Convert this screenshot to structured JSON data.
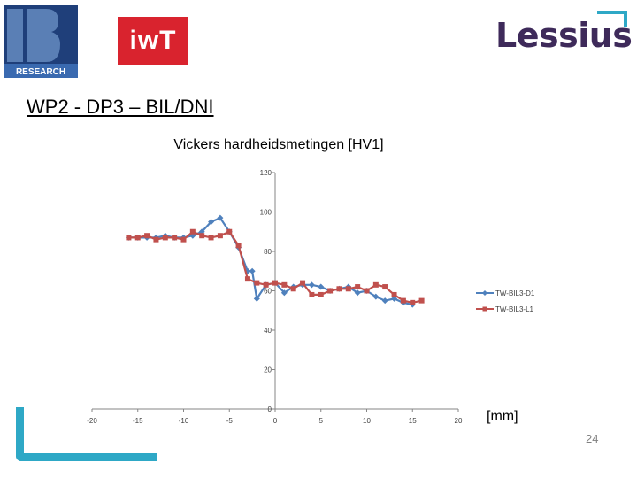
{
  "header": {
    "logo_bis": {
      "icon": "bis-research-logo",
      "text": "RESEARCH"
    },
    "logo_iwt": {
      "icon": "iwt-logo",
      "text": "iwT",
      "color": "#d9232e"
    },
    "logo_lessius": {
      "icon": "lessius-logo",
      "text": "Lessius",
      "color": "#3e2a5a",
      "accent": "#2ea8c6"
    }
  },
  "slide": {
    "title": "WP2 - DP3 – BIL/DNI",
    "unit_label": "[mm]",
    "page_number": "24"
  },
  "chart_data": {
    "type": "line",
    "title": "Vickers hardheidsmetingen [HV1]",
    "xlim": [
      -20,
      20
    ],
    "ylim": [
      0,
      120
    ],
    "x_ticks": [
      -20,
      -15,
      -10,
      -5,
      0,
      5,
      10,
      15,
      20
    ],
    "y_ticks": [
      0,
      20,
      40,
      60,
      80,
      100,
      120
    ],
    "grid": false,
    "legend_position": "right",
    "series": [
      {
        "name": "TW-BIL3-D1",
        "color": "#4f81bd",
        "marker": "diamond",
        "x": [
          -16,
          -15,
          -14,
          -13,
          -12,
          -11,
          -10,
          -9,
          -8,
          -7,
          -6,
          -5,
          -4,
          -3,
          -2.5,
          -2,
          -1,
          0,
          1,
          2,
          3,
          4,
          5,
          6,
          7,
          8,
          9,
          10,
          11,
          12,
          13,
          14,
          15
        ],
        "y": [
          87,
          87,
          87,
          87,
          88,
          87,
          87,
          88,
          90,
          95,
          97,
          90,
          82,
          70,
          70,
          56,
          63,
          64,
          59,
          62,
          63,
          63,
          62,
          60,
          61,
          62,
          59,
          60,
          57,
          55,
          56,
          54,
          53
        ]
      },
      {
        "name": "TW-BIL3-L1",
        "color": "#c0504d",
        "marker": "square",
        "x": [
          -16,
          -15,
          -14,
          -13,
          -12,
          -11,
          -10,
          -9,
          -8,
          -7,
          -6,
          -5,
          -4,
          -3,
          -2,
          -1,
          0,
          1,
          2,
          3,
          4,
          5,
          6,
          7,
          8,
          9,
          10,
          11,
          12,
          13,
          14,
          15,
          16
        ],
        "y": [
          87,
          87,
          88,
          86,
          87,
          87,
          86,
          90,
          88,
          87,
          88,
          90,
          83,
          66,
          64,
          63,
          64,
          63,
          61,
          64,
          58,
          58,
          60,
          61,
          61,
          62,
          60,
          63,
          62,
          58,
          55,
          54,
          55
        ]
      }
    ]
  }
}
